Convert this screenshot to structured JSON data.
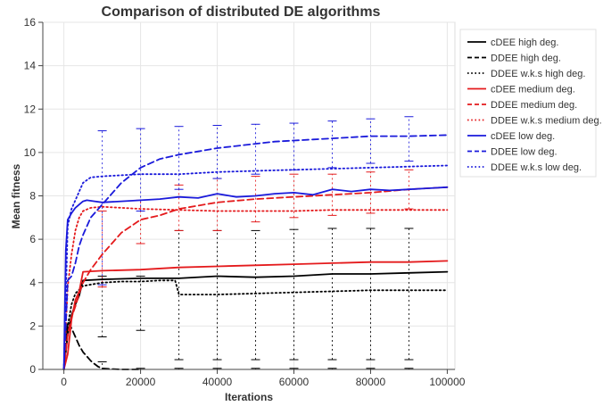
{
  "chart_data": {
    "type": "line",
    "title": "Comparison of distributed DE algorithms",
    "xlabel": "Iterations",
    "ylabel": "Mean fitness",
    "xlim": [
      -5500,
      102000
    ],
    "ylim": [
      0,
      16
    ],
    "xticks": [
      0,
      20000,
      40000,
      60000,
      80000,
      100000
    ],
    "yticks": [
      0,
      2,
      4,
      6,
      8,
      10,
      12,
      14,
      16
    ],
    "grid": true,
    "legend_position": "right",
    "series": [
      {
        "name": "cDEE high deg.",
        "color": "#000000",
        "dash": "solid",
        "x": [
          0,
          1000,
          2000,
          3000,
          4000,
          5000,
          10000,
          20000,
          30000,
          40000,
          50000,
          60000,
          70000,
          80000,
          90000,
          100000
        ],
        "y": [
          0,
          1.6,
          2.5,
          3.0,
          3.4,
          4.1,
          4.15,
          4.2,
          4.2,
          4.3,
          4.25,
          4.3,
          4.4,
          4.4,
          4.45,
          4.5
        ],
        "error_bars": false
      },
      {
        "name": "DDEE high deg.",
        "color": "#000000",
        "dash": "dashed",
        "x": [
          0,
          1000,
          2000,
          3000,
          4000,
          5000,
          6000,
          7000,
          8000,
          9000,
          10000,
          12000,
          15000,
          20000
        ],
        "y": [
          0,
          2.2,
          1.9,
          1.5,
          1.1,
          0.8,
          0.6,
          0.4,
          0.25,
          0.12,
          0.05,
          0.02,
          0.0,
          0.0
        ],
        "error_bars": true,
        "err_x": [
          10000,
          20000,
          30000,
          40000,
          50000,
          60000,
          70000,
          80000,
          90000
        ],
        "err_low": [
          0,
          0,
          0,
          0,
          0,
          0,
          0,
          0,
          0
        ],
        "err_high": [
          0.35,
          0.05,
          0.05,
          0.05,
          0.05,
          0.05,
          0.05,
          0.05,
          0.05
        ]
      },
      {
        "name": "DDEE w.k.s high deg.",
        "color": "#000000",
        "dash": "dotted",
        "x": [
          0,
          1000,
          2000,
          3000,
          5000,
          10000,
          15000,
          20000,
          25000,
          29000,
          30000,
          35000,
          40000,
          50000,
          60000,
          70000,
          80000,
          90000,
          100000
        ],
        "y": [
          0,
          2.0,
          3.0,
          3.5,
          3.85,
          4.0,
          4.05,
          4.05,
          4.1,
          4.1,
          3.45,
          3.45,
          3.45,
          3.5,
          3.55,
          3.6,
          3.65,
          3.65,
          3.65
        ],
        "error_bars": true,
        "err_x": [
          10000,
          20000,
          30000,
          40000,
          50000,
          60000,
          70000,
          80000,
          90000
        ],
        "err_low": [
          1.5,
          1.8,
          0.45,
          0.45,
          0.45,
          0.45,
          0.45,
          0.45,
          0.45
        ],
        "err_high": [
          4.3,
          4.3,
          6.4,
          6.4,
          6.4,
          6.45,
          6.5,
          6.5,
          6.5
        ]
      },
      {
        "name": "cDEE medium deg.",
        "color": "#e41a1c",
        "dash": "solid",
        "x": [
          0,
          1000,
          2000,
          3000,
          4000,
          5000,
          10000,
          20000,
          30000,
          40000,
          50000,
          60000,
          70000,
          80000,
          90000,
          100000
        ],
        "y": [
          0,
          0.7,
          2.3,
          3.2,
          3.6,
          4.5,
          4.55,
          4.6,
          4.7,
          4.75,
          4.8,
          4.85,
          4.9,
          4.95,
          4.95,
          5.0
        ],
        "error_bars": false
      },
      {
        "name": "DDEE medium deg.",
        "color": "#e41a1c",
        "dash": "dashed",
        "x": [
          0,
          1000,
          2000,
          3000,
          4000,
          5000,
          7000,
          10000,
          15000,
          20000,
          25000,
          30000,
          40000,
          50000,
          60000,
          70000,
          80000,
          90000,
          100000
        ],
        "y": [
          0,
          1.6,
          2.4,
          2.9,
          3.5,
          4.0,
          4.6,
          5.3,
          6.3,
          6.9,
          7.1,
          7.4,
          7.7,
          7.85,
          7.95,
          8.05,
          8.15,
          8.3,
          8.4
        ],
        "error_bars": true,
        "err_x": [
          10000,
          20000,
          30000,
          40000,
          50000,
          60000,
          70000,
          80000,
          90000
        ],
        "err_low": [
          3.8,
          5.8,
          6.4,
          6.4,
          6.8,
          7.0,
          7.1,
          7.2,
          7.4
        ],
        "err_high": [
          7.3,
          7.8,
          8.5,
          8.8,
          8.9,
          9.0,
          9.0,
          9.1,
          9.2
        ]
      },
      {
        "name": "DDEE w.k.s medium deg.",
        "color": "#e41a1c",
        "dash": "dotted",
        "x": [
          0,
          1000,
          2000,
          3000,
          4000,
          5000,
          7000,
          10000,
          15000,
          20000,
          30000,
          40000,
          50000,
          60000,
          70000,
          80000,
          90000,
          100000
        ],
        "y": [
          0,
          3.8,
          5.3,
          6.4,
          7.0,
          7.3,
          7.45,
          7.5,
          7.45,
          7.4,
          7.35,
          7.3,
          7.3,
          7.3,
          7.35,
          7.35,
          7.35,
          7.35
        ],
        "error_bars": false
      },
      {
        "name": "cDEE low deg.",
        "color": "#1a1adb",
        "dash": "solid",
        "x": [
          0,
          500,
          1000,
          2000,
          3000,
          4000,
          5000,
          6000,
          8000,
          10000,
          15000,
          20000,
          25000,
          30000,
          35000,
          40000,
          45000,
          50000,
          55000,
          60000,
          65000,
          70000,
          75000,
          80000,
          85000,
          90000,
          95000,
          100000
        ],
        "y": [
          0,
          5.5,
          6.9,
          7.2,
          7.45,
          7.6,
          7.75,
          7.8,
          7.75,
          7.7,
          7.75,
          7.8,
          7.85,
          7.95,
          7.9,
          8.1,
          7.95,
          8.0,
          8.1,
          8.15,
          8.05,
          8.3,
          8.2,
          8.3,
          8.25,
          8.3,
          8.35,
          8.4
        ],
        "error_bars": false
      },
      {
        "name": "DDEE low deg.",
        "color": "#1a1adb",
        "dash": "dashed",
        "x": [
          0,
          1000,
          2000,
          3000,
          4000,
          5000,
          7000,
          10000,
          12000,
          15000,
          20000,
          25000,
          30000,
          35000,
          40000,
          45000,
          50000,
          55000,
          60000,
          65000,
          70000,
          80000,
          90000,
          100000
        ],
        "y": [
          0,
          4.1,
          4.3,
          4.9,
          5.7,
          6.2,
          7.0,
          7.6,
          8.0,
          8.6,
          9.3,
          9.7,
          9.9,
          10.05,
          10.2,
          10.3,
          10.4,
          10.5,
          10.55,
          10.6,
          10.65,
          10.75,
          10.75,
          10.8
        ],
        "error_bars": true,
        "err_x": [
          10000,
          20000,
          30000,
          40000,
          50000,
          60000,
          70000,
          80000,
          90000
        ],
        "err_low": [
          3.9,
          7.3,
          8.3,
          8.8,
          9.0,
          9.2,
          9.3,
          9.5,
          9.6
        ],
        "err_high": [
          11.0,
          11.1,
          11.2,
          11.25,
          11.3,
          11.35,
          11.45,
          11.55,
          11.65
        ]
      },
      {
        "name": "DDEE w.k.s low deg.",
        "color": "#1a1adb",
        "dash": "dotted",
        "x": [
          0,
          1000,
          2000,
          3000,
          4000,
          5000,
          7000,
          10000,
          15000,
          20000,
          30000,
          40000,
          50000,
          60000,
          70000,
          80000,
          90000,
          100000
        ],
        "y": [
          0,
          6.6,
          7.4,
          7.8,
          8.2,
          8.6,
          8.85,
          8.9,
          8.95,
          9.0,
          9.0,
          9.1,
          9.15,
          9.2,
          9.25,
          9.3,
          9.35,
          9.4
        ],
        "error_bars": false
      }
    ]
  }
}
